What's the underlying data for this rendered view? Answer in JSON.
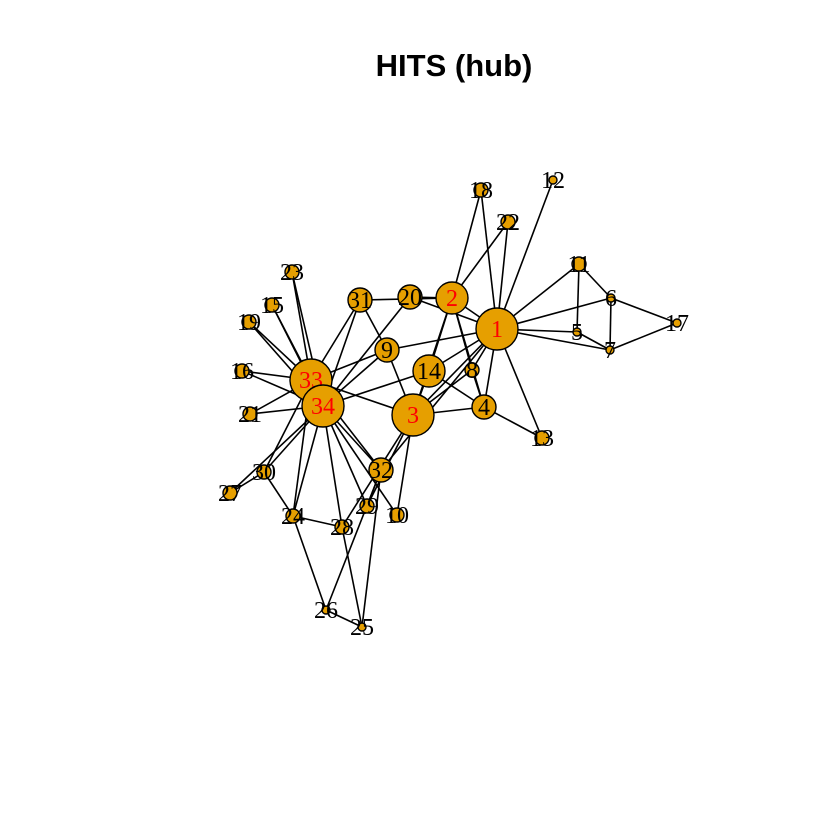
{
  "title": "HITS (hub)",
  "node_fill": "#E69F00",
  "label_color_default": "#000000",
  "label_color_highlight": "#FF0000",
  "nodes": [
    {
      "id": "1",
      "size": "large",
      "highlight": true
    },
    {
      "id": "2",
      "size": "medium",
      "highlight": true
    },
    {
      "id": "3",
      "size": "large",
      "highlight": true
    },
    {
      "id": "4",
      "size": "small-medium",
      "highlight": false
    },
    {
      "id": "5",
      "size": "tiny",
      "highlight": false
    },
    {
      "id": "6",
      "size": "tiny",
      "highlight": false
    },
    {
      "id": "7",
      "size": "tiny",
      "highlight": false
    },
    {
      "id": "8",
      "size": "small",
      "highlight": false
    },
    {
      "id": "9",
      "size": "small-medium",
      "highlight": false
    },
    {
      "id": "10",
      "size": "small",
      "highlight": false
    },
    {
      "id": "11",
      "size": "small",
      "highlight": false
    },
    {
      "id": "12",
      "size": "tiny",
      "highlight": false
    },
    {
      "id": "13",
      "size": "small",
      "highlight": false
    },
    {
      "id": "14",
      "size": "medium",
      "highlight": false
    },
    {
      "id": "15",
      "size": "small",
      "highlight": false
    },
    {
      "id": "16",
      "size": "small",
      "highlight": false
    },
    {
      "id": "17",
      "size": "tiny",
      "highlight": false
    },
    {
      "id": "18",
      "size": "small",
      "highlight": false
    },
    {
      "id": "19",
      "size": "small",
      "highlight": false
    },
    {
      "id": "20",
      "size": "small-medium",
      "highlight": false
    },
    {
      "id": "21",
      "size": "small",
      "highlight": false
    },
    {
      "id": "22",
      "size": "small",
      "highlight": false
    },
    {
      "id": "23",
      "size": "small",
      "highlight": false
    },
    {
      "id": "24",
      "size": "small",
      "highlight": false
    },
    {
      "id": "25",
      "size": "tiny",
      "highlight": false
    },
    {
      "id": "26",
      "size": "tiny",
      "highlight": false
    },
    {
      "id": "27",
      "size": "small",
      "highlight": false
    },
    {
      "id": "28",
      "size": "small",
      "highlight": false
    },
    {
      "id": "29",
      "size": "small",
      "highlight": false
    },
    {
      "id": "30",
      "size": "small",
      "highlight": false
    },
    {
      "id": "31",
      "size": "small-medium",
      "highlight": false
    },
    {
      "id": "32",
      "size": "small-medium",
      "highlight": false
    },
    {
      "id": "33",
      "size": "large",
      "highlight": true
    },
    {
      "id": "34",
      "size": "large",
      "highlight": true
    }
  ],
  "edges": [
    [
      "1",
      "2"
    ],
    [
      "1",
      "3"
    ],
    [
      "1",
      "4"
    ],
    [
      "1",
      "5"
    ],
    [
      "1",
      "6"
    ],
    [
      "1",
      "7"
    ],
    [
      "1",
      "8"
    ],
    [
      "1",
      "9"
    ],
    [
      "1",
      "11"
    ],
    [
      "1",
      "12"
    ],
    [
      "1",
      "13"
    ],
    [
      "1",
      "14"
    ],
    [
      "1",
      "18"
    ],
    [
      "1",
      "20"
    ],
    [
      "1",
      "22"
    ],
    [
      "1",
      "32"
    ],
    [
      "2",
      "3"
    ],
    [
      "2",
      "4"
    ],
    [
      "2",
      "8"
    ],
    [
      "2",
      "14"
    ],
    [
      "2",
      "18"
    ],
    [
      "2",
      "20"
    ],
    [
      "2",
      "22"
    ],
    [
      "2",
      "31"
    ],
    [
      "3",
      "4"
    ],
    [
      "3",
      "8"
    ],
    [
      "3",
      "9"
    ],
    [
      "3",
      "10"
    ],
    [
      "3",
      "14"
    ],
    [
      "3",
      "28"
    ],
    [
      "3",
      "29"
    ],
    [
      "3",
      "33"
    ],
    [
      "4",
      "8"
    ],
    [
      "4",
      "13"
    ],
    [
      "4",
      "14"
    ],
    [
      "5",
      "7"
    ],
    [
      "5",
      "11"
    ],
    [
      "6",
      "7"
    ],
    [
      "6",
      "11"
    ],
    [
      "6",
      "17"
    ],
    [
      "7",
      "17"
    ],
    [
      "9",
      "31"
    ],
    [
      "9",
      "33"
    ],
    [
      "9",
      "34"
    ],
    [
      "10",
      "34"
    ],
    [
      "14",
      "34"
    ],
    [
      "15",
      "33"
    ],
    [
      "15",
      "34"
    ],
    [
      "16",
      "33"
    ],
    [
      "16",
      "34"
    ],
    [
      "19",
      "33"
    ],
    [
      "19",
      "34"
    ],
    [
      "20",
      "34"
    ],
    [
      "21",
      "33"
    ],
    [
      "21",
      "34"
    ],
    [
      "23",
      "33"
    ],
    [
      "23",
      "34"
    ],
    [
      "24",
      "26"
    ],
    [
      "24",
      "28"
    ],
    [
      "24",
      "30"
    ],
    [
      "24",
      "33"
    ],
    [
      "24",
      "34"
    ],
    [
      "25",
      "26"
    ],
    [
      "25",
      "28"
    ],
    [
      "25",
      "32"
    ],
    [
      "26",
      "32"
    ],
    [
      "27",
      "30"
    ],
    [
      "27",
      "34"
    ],
    [
      "28",
      "34"
    ],
    [
      "29",
      "32"
    ],
    [
      "29",
      "34"
    ],
    [
      "30",
      "33"
    ],
    [
      "30",
      "34"
    ],
    [
      "31",
      "33"
    ],
    [
      "31",
      "34"
    ],
    [
      "32",
      "33"
    ],
    [
      "32",
      "34"
    ],
    [
      "33",
      "34"
    ]
  ]
}
